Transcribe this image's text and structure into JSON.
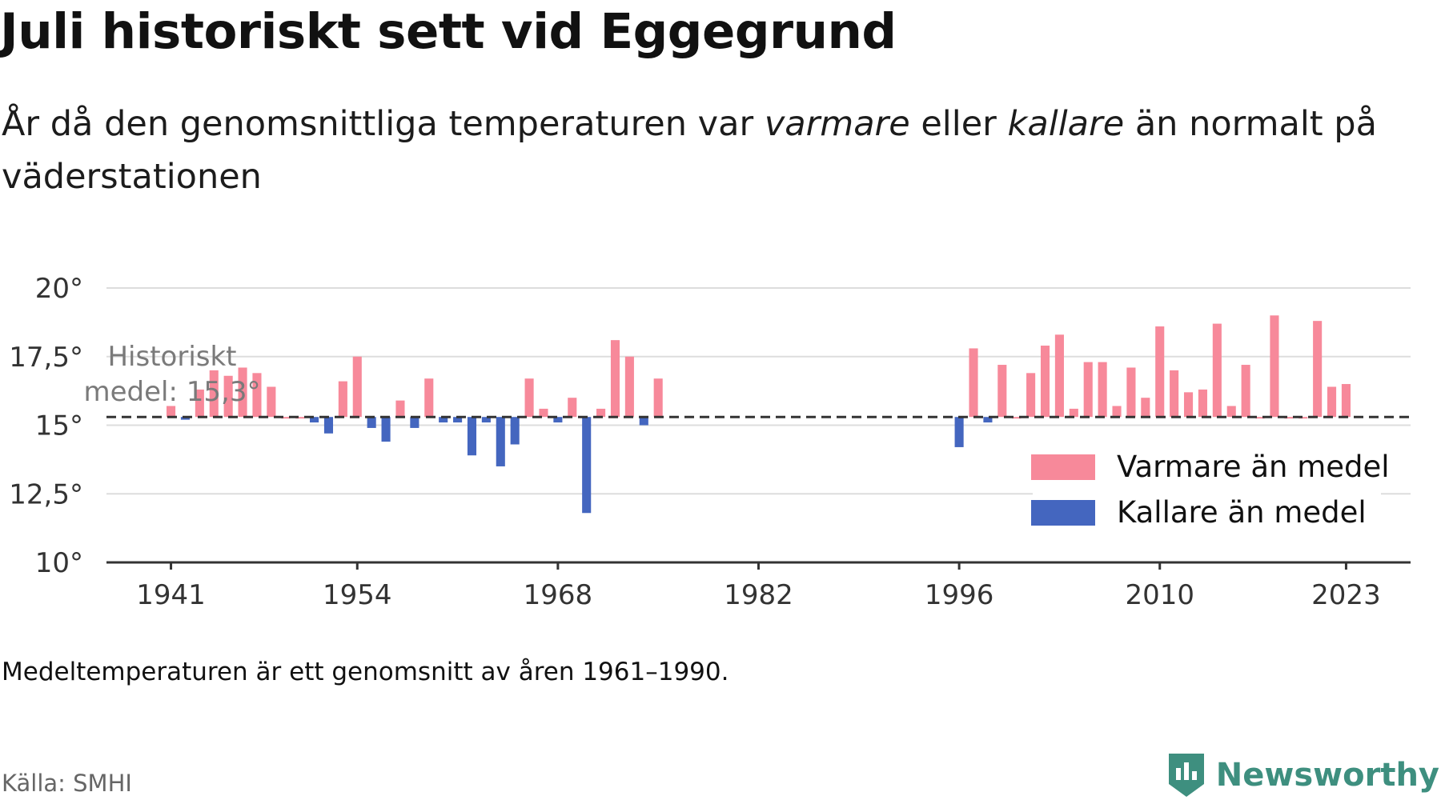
{
  "title": "Juli historiskt sett vid Eggegrund",
  "subtitle": {
    "part1": "År då den genomsnittliga temperaturen var ",
    "warm_word": "varmare",
    "part2": " eller ",
    "cold_word": "kallare",
    "part3": " än normalt på väderstationen"
  },
  "footnote": "Medeltemperaturen är ett genomsnitt av åren 1961–1990.",
  "source": "Källa: SMHI",
  "brand": {
    "name": "Newsworthy",
    "icon": "newsworthy-logo-icon",
    "color": "#3e8f7f"
  },
  "chart_data": {
    "type": "bar",
    "baseline": 15.3,
    "baseline_label_line1": "Historiskt",
    "baseline_label_line2": "medel: 15,3°",
    "x_ticks": [
      "1941",
      "1954",
      "1968",
      "1982",
      "1996",
      "2010",
      "2023"
    ],
    "y_ticks": [
      10,
      12.5,
      15,
      17.5,
      20
    ],
    "y_tick_labels": [
      "10°",
      "12,5°",
      "15°",
      "17,5°",
      "20°"
    ],
    "xlim": [
      1936.5,
      2027.5
    ],
    "ylim": [
      10,
      20
    ],
    "grid": true,
    "legend_position": "right",
    "colors": {
      "warm": "#f7899a",
      "cold": "#4466bf",
      "baseline": "#333333",
      "grid": "#dddddd"
    },
    "series": [
      {
        "name": "Varmare än medel",
        "color": "#f7899a"
      },
      {
        "name": "Kallare än medel",
        "color": "#4466bf"
      }
    ],
    "years": [
      1941,
      1942,
      1943,
      1944,
      1945,
      1946,
      1947,
      1948,
      1949,
      1950,
      1951,
      1952,
      1953,
      1954,
      1955,
      1956,
      1957,
      1958,
      1959,
      1960,
      1961,
      1962,
      1963,
      1964,
      1965,
      1966,
      1967,
      1968,
      1969,
      1970,
      1971,
      1972,
      1973,
      1974,
      1975,
      1996,
      1997,
      1998,
      1999,
      2000,
      2001,
      2002,
      2003,
      2004,
      2005,
      2006,
      2007,
      2008,
      2009,
      2010,
      2011,
      2012,
      2013,
      2014,
      2015,
      2016,
      2017,
      2018,
      2019,
      2020,
      2021,
      2022,
      2023
    ],
    "values": [
      15.7,
      15.2,
      16.3,
      17.0,
      16.8,
      17.1,
      16.9,
      16.4,
      15.3,
      15.3,
      15.1,
      14.7,
      16.6,
      17.5,
      14.9,
      14.4,
      15.9,
      14.9,
      16.7,
      15.1,
      15.1,
      13.9,
      15.1,
      13.5,
      14.3,
      16.7,
      15.6,
      15.1,
      16.0,
      11.8,
      15.6,
      18.1,
      17.5,
      15.0,
      16.7,
      14.2,
      17.8,
      15.1,
      17.2,
      15.3,
      16.9,
      17.9,
      18.3,
      15.6,
      17.3,
      17.3,
      15.7,
      17.1,
      16.0,
      18.6,
      17.0,
      16.2,
      16.3,
      18.7,
      15.7,
      17.2,
      15.3,
      19.0,
      15.3,
      15.3,
      18.8,
      16.4,
      16.5
    ]
  }
}
